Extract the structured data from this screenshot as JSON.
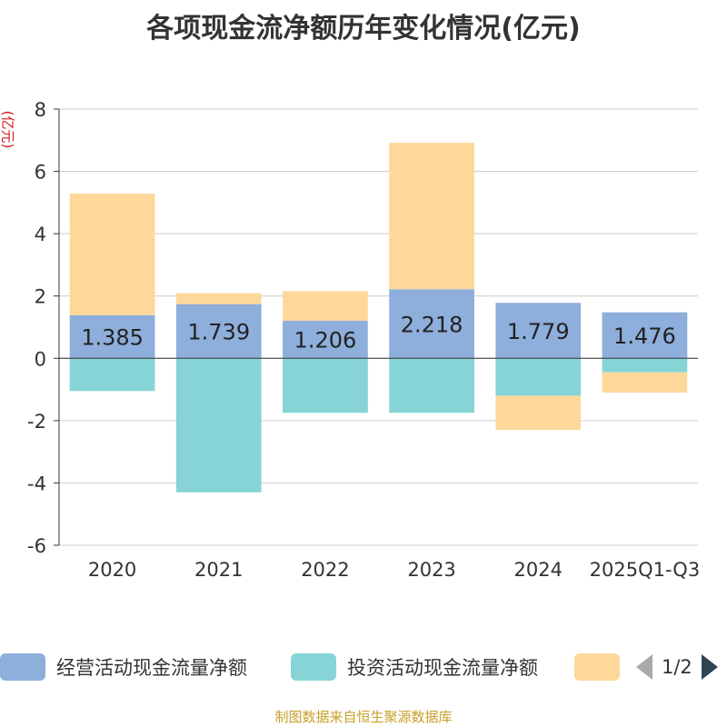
{
  "title": "各项现金流净额历年变化情况(亿元)",
  "y_unit": "(亿元)",
  "source": "制图数据来自恒生聚源数据库",
  "legend_pager": "1/2",
  "colors": {
    "operating": "#8eaedb",
    "investing": "#86d4d6",
    "financing": "#fdd89a"
  },
  "chart_data": {
    "type": "bar",
    "stacked": true,
    "title": "各项现金流净额历年变化情况(亿元)",
    "ylabel": "(亿元)",
    "ylim": [
      -6,
      8
    ],
    "yticks": [
      8,
      6,
      4,
      2,
      0,
      -2,
      -4,
      -6
    ],
    "categories": [
      "2020",
      "2021",
      "2022",
      "2023",
      "2024",
      "2025Q1-Q3"
    ],
    "series": [
      {
        "name": "经营活动现金流量净额",
        "key": "operating",
        "values": [
          1.385,
          1.739,
          1.206,
          2.218,
          1.779,
          1.476
        ],
        "labels": [
          "1.385",
          "1.739",
          "1.206",
          "2.218",
          "1.779",
          "1.476"
        ]
      },
      {
        "name": "投资活动现金流量净额",
        "key": "investing",
        "values": [
          -1.05,
          -4.3,
          -1.75,
          -1.75,
          -1.2,
          -0.45
        ]
      },
      {
        "name": "",
        "key": "financing",
        "values": [
          3.9,
          0.35,
          0.95,
          4.7,
          -1.1,
          -0.65
        ]
      }
    ]
  }
}
